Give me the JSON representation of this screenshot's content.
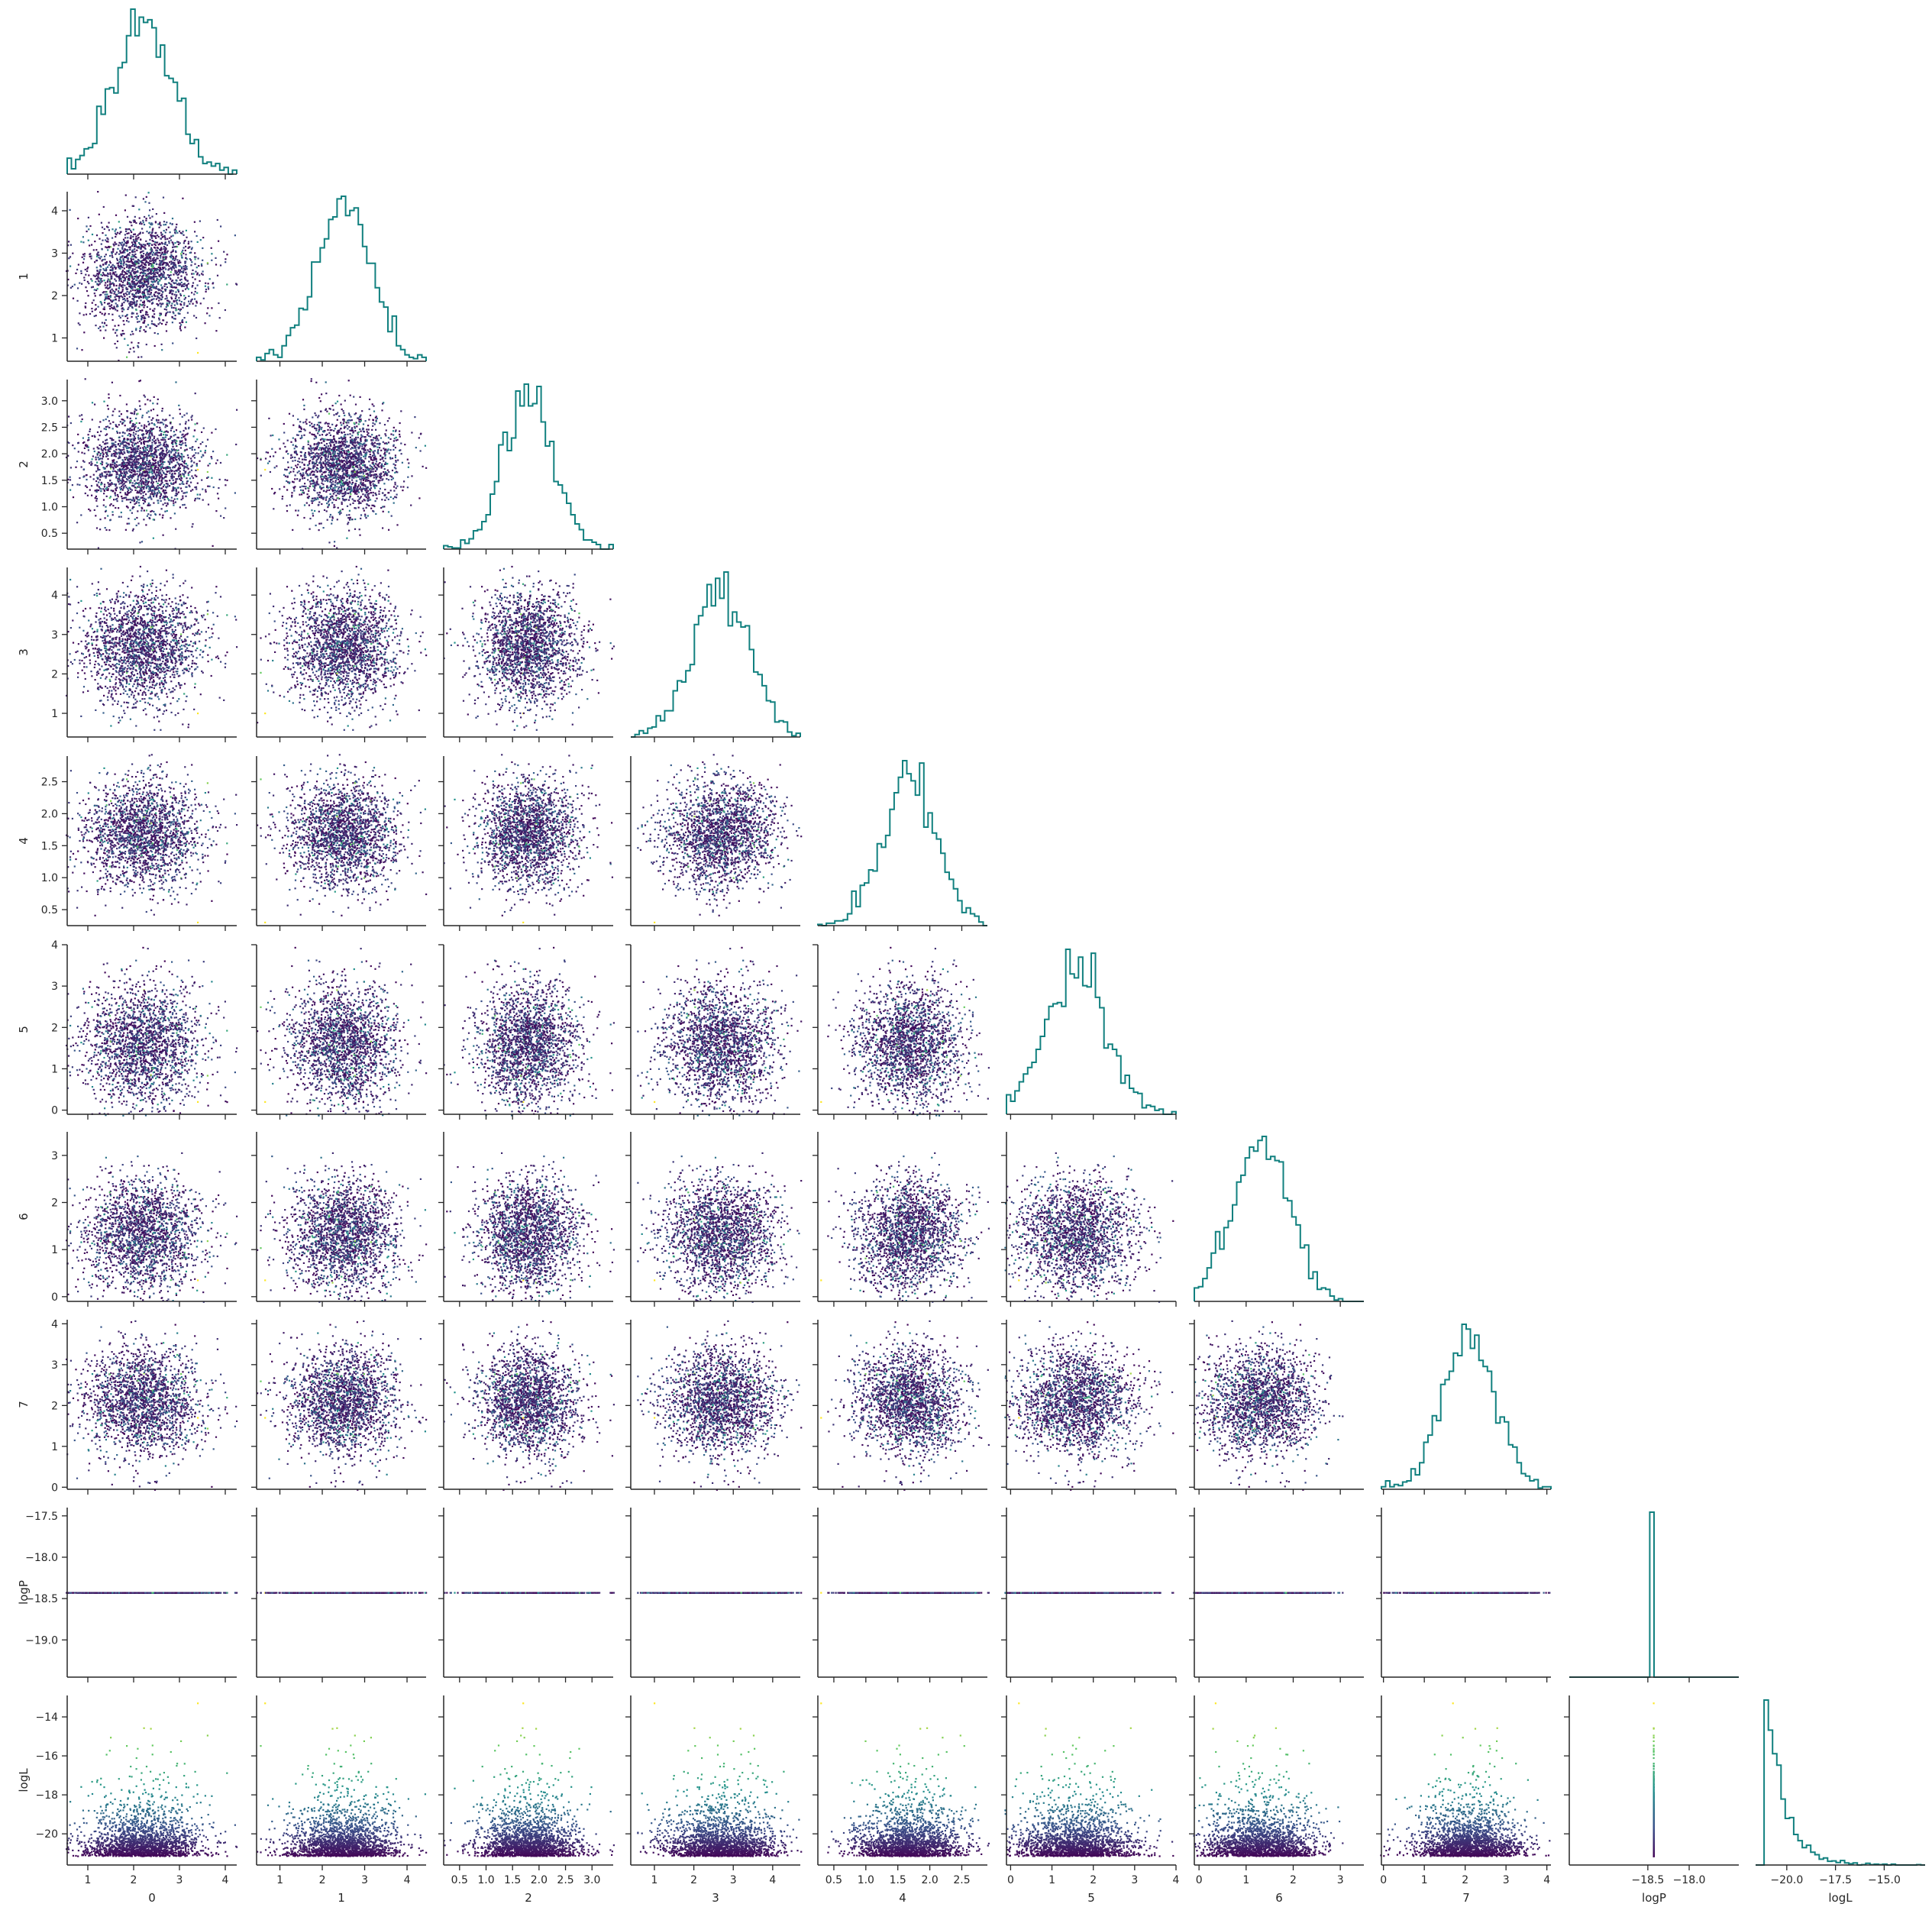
{
  "chart_data": {
    "type": "scatter",
    "layout": "corner pair plot (lower triangle scatter, diagonal step histograms)",
    "variables": [
      "0",
      "1",
      "2",
      "3",
      "4",
      "5",
      "6",
      "7",
      "logP",
      "logL"
    ],
    "axis_labels": [
      "0",
      "1",
      "2",
      "3",
      "4",
      "5",
      "6",
      "7",
      "logP",
      "logL"
    ],
    "ranges": [
      [
        0.55,
        4.25
      ],
      [
        0.45,
        4.45
      ],
      [
        0.2,
        3.4
      ],
      [
        0.4,
        4.7
      ],
      [
        0.25,
        2.9
      ],
      [
        -0.1,
        4.0
      ],
      [
        -0.1,
        3.5
      ],
      [
        -0.05,
        4.1
      ],
      [
        -19.45,
        -17.4
      ],
      [
        -21.6,
        -12.9
      ]
    ],
    "ticks": [
      [
        1,
        2,
        3,
        4
      ],
      [
        1,
        2,
        3,
        4
      ],
      [
        0.5,
        1.0,
        1.5,
        2.0,
        2.5,
        3.0
      ],
      [
        1,
        2,
        3,
        4
      ],
      [
        0.5,
        1.0,
        1.5,
        2.0,
        2.5
      ],
      [
        0,
        1,
        2,
        3,
        4
      ],
      [
        0,
        1,
        2,
        3
      ],
      [
        0,
        1,
        2,
        3,
        4
      ],
      [
        -19.0,
        -18.5,
        -18.0,
        -17.5
      ],
      [
        -20,
        -18,
        -16,
        -14
      ]
    ],
    "tick_labels": [
      [
        "1",
        "2",
        "3",
        "4"
      ],
      [
        "1",
        "2",
        "3",
        "4"
      ],
      [
        "0.5",
        "1.0",
        "1.5",
        "2.0",
        "2.5",
        "3.0"
      ],
      [
        "1",
        "2",
        "3",
        "4"
      ],
      [
        "0.5",
        "1.0",
        "1.5",
        "2.0",
        "2.5"
      ],
      [
        "0",
        "1",
        "2",
        "3",
        "4"
      ],
      [
        "0",
        "1",
        "2",
        "3"
      ],
      [
        "0",
        "1",
        "2",
        "3",
        "4"
      ],
      [
        "−19.0",
        "−18.5",
        "−18.0",
        "−17.5"
      ],
      [
        "−20",
        "−18",
        "−16",
        "−14"
      ]
    ],
    "bottom_ticks": {
      "logP": [
        -18.5,
        -18.0
      ],
      "logP_labels": [
        "−18.5",
        "−18.0"
      ],
      "logL": [
        -20.0,
        -17.5,
        -15.0
      ],
      "logL_labels": [
        "−20.0",
        "−17.5",
        "−15.0"
      ]
    },
    "distributions": {
      "means": [
        2.2,
        2.5,
        1.8,
        2.7,
        1.7,
        1.6,
        1.3,
        2.1
      ],
      "std_devs": [
        0.65,
        0.65,
        0.48,
        0.7,
        0.42,
        0.73,
        0.6,
        0.67
      ],
      "logP_constant": -18.43,
      "logL_minimum": -21.2,
      "logL_max_outlier": -13.3
    },
    "n_samples": 2000,
    "histogram_bins": 40,
    "colormap": "viridis (points colored by logL)",
    "colors": {
      "histogram": "#11807f",
      "viridis_low": "#440154",
      "viridis_mid": "#21918c",
      "viridis_high": "#fde725",
      "axis": "#262626"
    },
    "grid": false
  }
}
